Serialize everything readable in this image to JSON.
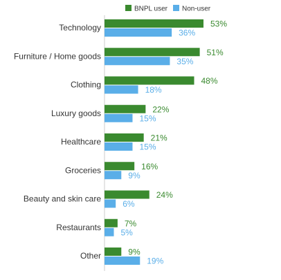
{
  "chart_data": {
    "type": "bar",
    "orientation": "horizontal",
    "title": "",
    "xlabel": "",
    "ylabel": "",
    "value_suffix": "%",
    "xlim": [
      0,
      53
    ],
    "grid": false,
    "legend_position": "top",
    "categories": [
      "Technology",
      "Furniture / Home goods",
      "Clothing",
      "Luxury goods",
      "Healthcare",
      "Groceries",
      "Beauty and skin care",
      "Restaurants",
      "Other"
    ],
    "series": [
      {
        "name": "BNPL user",
        "color": "#3a8a2f",
        "label_color": "#3a8a2f",
        "values": [
          53,
          51,
          48,
          22,
          21,
          16,
          24,
          7,
          9
        ]
      },
      {
        "name": "Non-user",
        "color": "#5aaee8",
        "label_color": "#5aaee8",
        "values": [
          36,
          35,
          18,
          15,
          15,
          9,
          6,
          5,
          19
        ]
      }
    ]
  }
}
